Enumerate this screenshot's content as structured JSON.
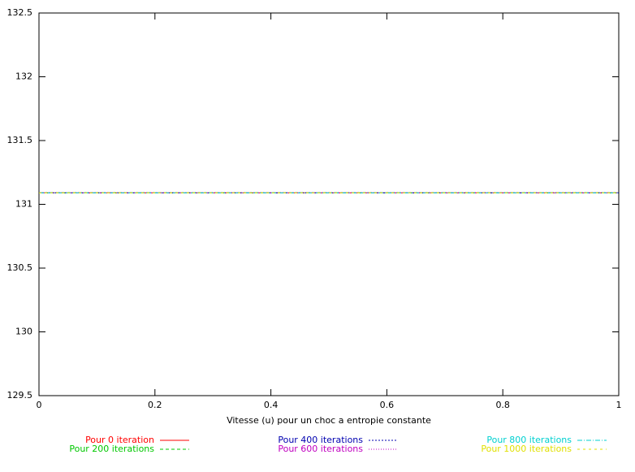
{
  "chart_data": {
    "type": "line",
    "x_label": "Vitesse (u) pour un choc a entropie constante",
    "x": [
      0,
      1
    ],
    "series": [
      {
        "name": "Pour 0 iteration",
        "color": "#ff0000",
        "values": [
          131.09,
          131.09
        ]
      },
      {
        "name": "Pour 200 iterations",
        "color": "#00c800",
        "values": [
          131.09,
          131.09
        ]
      },
      {
        "name": "Pour 400 iterations",
        "color": "#0000b0",
        "values": [
          131.09,
          131.09
        ]
      },
      {
        "name": "Pour 600 iterations",
        "color": "#c000c0",
        "values": [
          131.09,
          131.09
        ]
      },
      {
        "name": "Pour 800 iterations",
        "color": "#00d0d0",
        "values": [
          131.09,
          131.09
        ]
      },
      {
        "name": "Pour 1000 iterations",
        "color": "#e0e000",
        "values": [
          131.09,
          131.09
        ]
      }
    ],
    "xlim": [
      0,
      1
    ],
    "xticks": [
      0,
      0.2,
      0.4,
      0.6,
      0.8,
      1
    ],
    "ylim": [
      129.5,
      132.5
    ],
    "yticks": [
      129.5,
      130,
      130.5,
      131,
      131.5,
      132,
      132.5
    ],
    "grid": false
  }
}
